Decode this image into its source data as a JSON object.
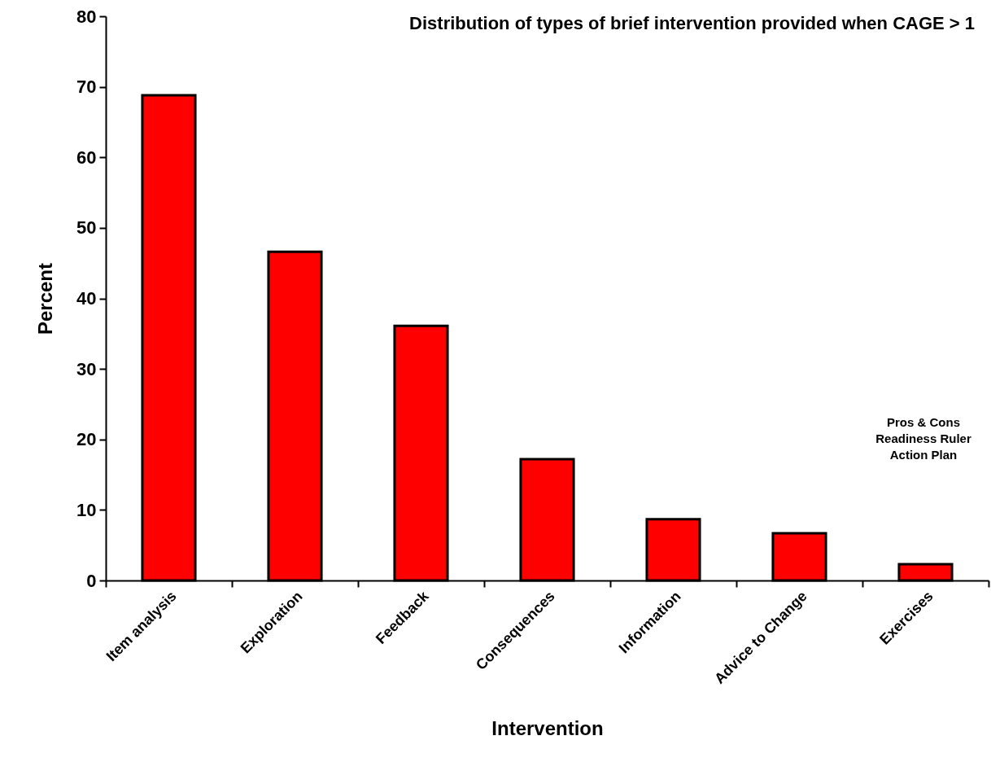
{
  "chart_data": {
    "type": "bar",
    "title": "Distribution of types of brief intervention provided when CAGE > 1",
    "xlabel": "Intervention",
    "ylabel": "Percent",
    "categories": [
      "Item analysis",
      "Exploration",
      "Feedback",
      "Consequences",
      "Information",
      "Advice to Change",
      "Exercises"
    ],
    "values": [
      68.8,
      46.6,
      36.1,
      17.2,
      8.7,
      6.7,
      2.3
    ],
    "color": "#ff0000",
    "ylim": [
      0,
      80
    ],
    "yticks": [
      0,
      10,
      20,
      30,
      40,
      50,
      60,
      70,
      80
    ],
    "grid": false,
    "annotations": [
      "Pros & Cons\nReadiness Ruler\nAction Plan"
    ]
  }
}
